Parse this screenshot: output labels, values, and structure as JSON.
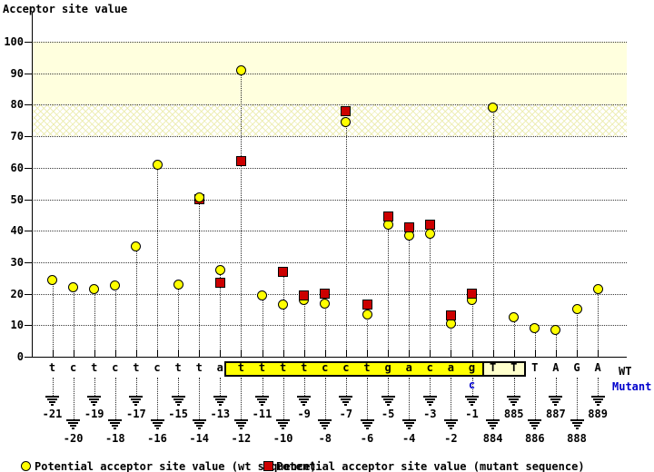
{
  "title": "Acceptor site value",
  "right_labels": {
    "wt": "WT",
    "mutant": "Mutant"
  },
  "legend": [
    {
      "icon": "wt-circle",
      "label": "Potential acceptor site value (wt sequence)",
      "color": "#FFFF00"
    },
    {
      "icon": "mutant-square",
      "label": "Potential acceptor site value (mutant sequence)",
      "color": "#CC0000"
    }
  ],
  "colors": {
    "wt_marker": "#FFFF00",
    "mutant_marker": "#CC0000",
    "intron_box": "#FFFF00",
    "exon_box": "#FFFFCC",
    "band": "#FFFFDE",
    "mutant_text": "#0000CC"
  },
  "chart_data": {
    "type": "scatter",
    "title": "Acceptor site value",
    "ylabel": "Acceptor site value",
    "ylim": [
      0,
      100
    ],
    "yticks": [
      0,
      10,
      20,
      30,
      40,
      50,
      60,
      70,
      80,
      90,
      100
    ],
    "grid": "dotted horizontal",
    "legend_position": "bottom",
    "bands": [
      {
        "from": 80,
        "to": 100,
        "style": "solid"
      },
      {
        "from": 70,
        "to": 80,
        "style": "hatch"
      }
    ],
    "series_names": [
      "wt sequence",
      "mutant sequence"
    ],
    "positions": [
      {
        "pos": "-21",
        "base": "t",
        "wt": 24.5
      },
      {
        "pos": "-20",
        "base": "c",
        "wt": 22
      },
      {
        "pos": "-19",
        "base": "t",
        "wt": 21.5
      },
      {
        "pos": "-18",
        "base": "c",
        "wt": 22.5
      },
      {
        "pos": "-17",
        "base": "t",
        "wt": 35
      },
      {
        "pos": "-16",
        "base": "c",
        "wt": 61
      },
      {
        "pos": "-15",
        "base": "t",
        "wt": 23
      },
      {
        "pos": "-14",
        "base": "t",
        "wt": 50.5,
        "mutant": 50
      },
      {
        "pos": "-13",
        "base": "a",
        "wt": 27.5,
        "mutant": 23.5
      },
      {
        "pos": "-12",
        "base": "t",
        "wt": 91,
        "mutant": 62
      },
      {
        "pos": "-11",
        "base": "t",
        "wt": 19.5
      },
      {
        "pos": "-10",
        "base": "t",
        "wt": 16.5,
        "mutant": 27
      },
      {
        "pos": "-9",
        "base": "t",
        "wt": 18,
        "mutant": 19.5
      },
      {
        "pos": "-8",
        "base": "c",
        "wt": 17,
        "mutant": 20
      },
      {
        "pos": "-7",
        "base": "c",
        "wt": 74.5,
        "mutant": 78
      },
      {
        "pos": "-6",
        "base": "t",
        "wt": 13.5,
        "mutant": 16.5
      },
      {
        "pos": "-5",
        "base": "g",
        "wt": 42,
        "mutant": 44.5
      },
      {
        "pos": "-4",
        "base": "a",
        "wt": 38.5,
        "mutant": 41
      },
      {
        "pos": "-3",
        "base": "c",
        "wt": 39,
        "mutant": 42
      },
      {
        "pos": "-2",
        "base": "a",
        "wt": 10.5,
        "mutant": 13
      },
      {
        "pos": "-1",
        "base": "g",
        "mutant_base": "c",
        "wt": 18,
        "mutant": 20
      },
      {
        "pos": "884",
        "base": "T",
        "wt": 79
      },
      {
        "pos": "885",
        "base": "T",
        "wt": 12.5
      },
      {
        "pos": "886",
        "base": "T",
        "wt": 9
      },
      {
        "pos": "887",
        "base": "A",
        "wt": 8.5
      },
      {
        "pos": "888",
        "base": "G",
        "wt": 15
      },
      {
        "pos": "889",
        "base": "A",
        "wt": 21.5
      }
    ],
    "intron_highlight": {
      "from_pos": "-12",
      "to_pos": "-1",
      "sequence": "ttttcctgacag"
    },
    "exon_highlight": {
      "from_pos": "884",
      "to_pos": "885",
      "sequence": "TT"
    }
  }
}
